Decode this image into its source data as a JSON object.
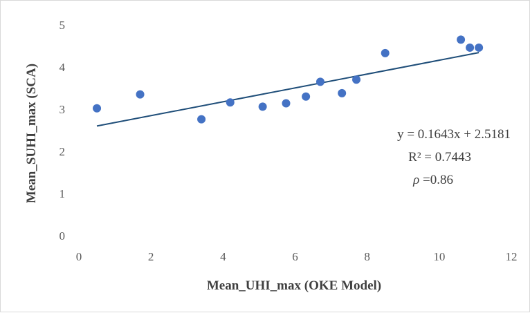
{
  "chart_data": {
    "type": "scatter",
    "xlabel": "Mean_UHI_max (OKE Model)",
    "ylabel": "Mean_SUHI_max (SCA)",
    "xlim": [
      0,
      12
    ],
    "ylim": [
      0,
      5
    ],
    "x_ticks": [
      "0",
      "2",
      "4",
      "6",
      "8",
      "10",
      "12"
    ],
    "y_ticks": [
      "0",
      "1",
      "2",
      "3",
      "4",
      "5"
    ],
    "grid": false,
    "marker_color": "#4472C4",
    "trendline_color": "#1F4E79",
    "points": [
      {
        "x": 0.5,
        "y": 3.02
      },
      {
        "x": 1.7,
        "y": 3.35
      },
      {
        "x": 3.4,
        "y": 2.76
      },
      {
        "x": 4.2,
        "y": 3.16
      },
      {
        "x": 5.1,
        "y": 3.06
      },
      {
        "x": 5.75,
        "y": 3.14
      },
      {
        "x": 6.3,
        "y": 3.3
      },
      {
        "x": 6.7,
        "y": 3.65
      },
      {
        "x": 7.3,
        "y": 3.38
      },
      {
        "x": 7.7,
        "y": 3.7
      },
      {
        "x": 8.5,
        "y": 4.33
      },
      {
        "x": 10.6,
        "y": 4.65
      },
      {
        "x": 10.85,
        "y": 4.46
      },
      {
        "x": 11.1,
        "y": 4.46
      }
    ],
    "trendline": {
      "slope": 0.1643,
      "intercept": 2.5181,
      "x_start": 0.5,
      "x_end": 11.1
    },
    "annotations": {
      "equation": "y = 0.1643x + 2.5181",
      "r_squared": "R² = 0.7443",
      "rho_symbol": "ρ",
      "rho_value": " =0.86"
    }
  }
}
